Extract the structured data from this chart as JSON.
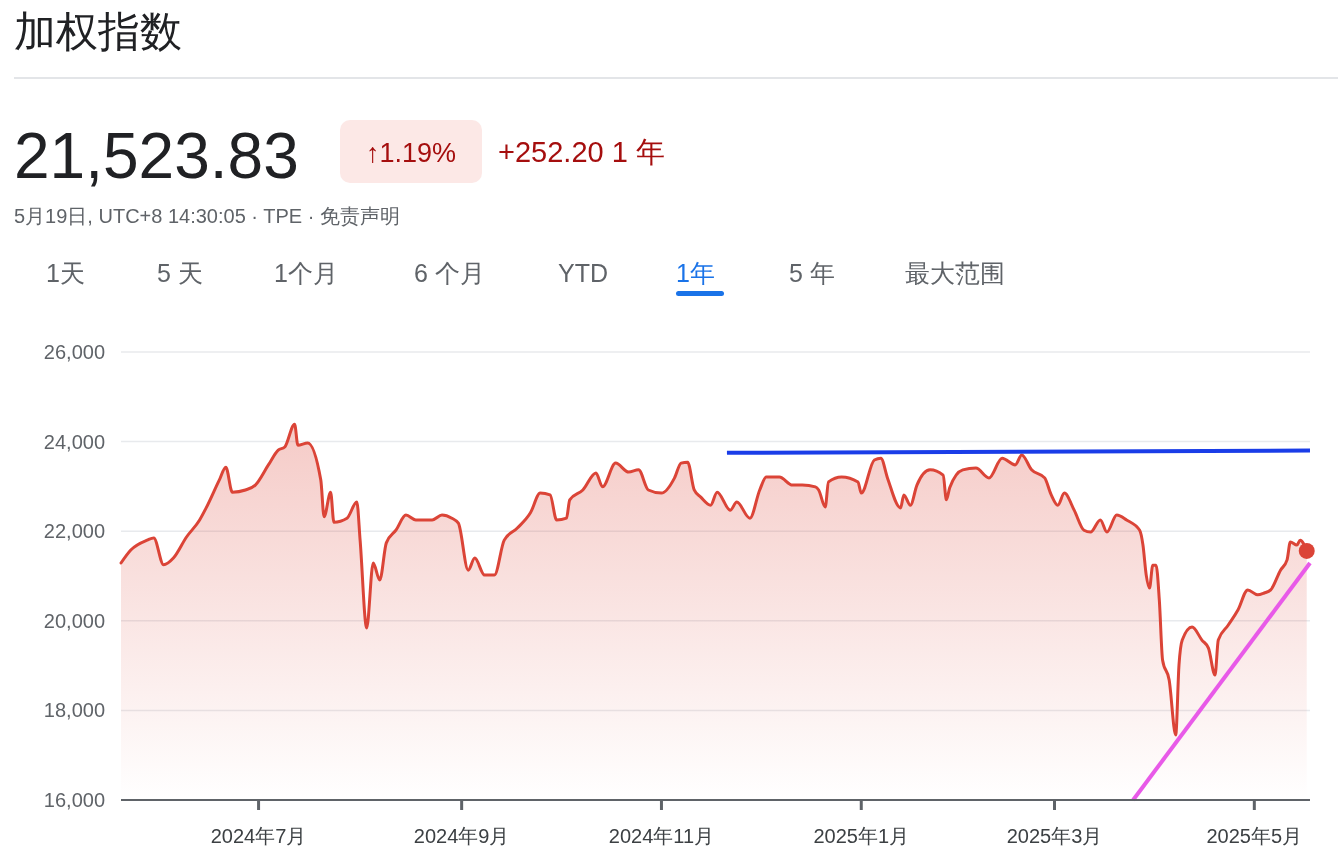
{
  "chart_data": {
    "type": "area",
    "title": "加权指数",
    "annotations": [
      "21,523.83",
      "↑1.19%",
      "+252.20 1 年",
      "5月19日, UTC+8 14:30:05 · TPE · 免责声明",
      "1天",
      "5 天",
      "1个月",
      "6 个月",
      "YTD",
      "1年",
      "5 年",
      "最大范围"
    ],
    "x": [
      "2024-05-20",
      "2024-05-23",
      "2024-05-28",
      "2024-05-30",
      "2024-06-02",
      "2024-06-05",
      "2024-06-09",
      "2024-06-13",
      "2024-06-15",
      "2024-06-19",
      "2024-06-21",
      "2024-06-23",
      "2024-06-27",
      "2024-06-30",
      "2024-07-04",
      "2024-07-07",
      "2024-07-09",
      "2024-07-12",
      "2024-07-13",
      "2024-07-16",
      "2024-07-20",
      "2024-07-21",
      "2024-07-23",
      "2024-07-24",
      "2024-07-28",
      "2024-07-31",
      "2024-08-01",
      "2024-08-03",
      "2024-08-05",
      "2024-08-07",
      "2024-08-09",
      "2024-08-12",
      "2024-08-15",
      "2024-08-18",
      "2024-08-23",
      "2024-08-26",
      "2024-08-29",
      "2024-08-31",
      "2024-09-03",
      "2024-09-05",
      "2024-09-08",
      "2024-09-11",
      "2024-09-14",
      "2024-09-18",
      "2024-09-22",
      "2024-09-25",
      "2024-09-28",
      "2024-09-30",
      "2024-10-03",
      "2024-10-04",
      "2024-10-08",
      "2024-10-12",
      "2024-10-14",
      "2024-10-18",
      "2024-10-22",
      "2024-10-25",
      "2024-10-28",
      "2024-11-01",
      "2024-11-05",
      "2024-11-07",
      "2024-11-09",
      "2024-11-11",
      "2024-11-13",
      "2024-11-16",
      "2024-11-18",
      "2024-11-22",
      "2024-11-24",
      "2024-11-28",
      "2024-12-01",
      "2024-12-03",
      "2024-12-07",
      "2024-12-11",
      "2024-12-14",
      "2024-12-18",
      "2024-12-19",
      "2024-12-21",
      "2024-12-22",
      "2024-12-26",
      "2024-12-31",
      "2025-01-01",
      "2025-01-05",
      "2025-01-07",
      "2025-01-09",
      "2025-01-13",
      "2025-01-14",
      "2025-01-16",
      "2025-01-18",
      "2025-01-22",
      "2025-01-26",
      "2025-01-27",
      "2025-01-28",
      "2025-02-01",
      "2025-02-05",
      "2025-02-09",
      "2025-02-13",
      "2025-02-17",
      "2025-02-19",
      "2025-02-22",
      "2025-02-26",
      "2025-02-28",
      "2025-03-02",
      "2025-03-04",
      "2025-03-07",
      "2025-03-10",
      "2025-03-12",
      "2025-03-15",
      "2025-03-17",
      "2025-03-20",
      "2025-03-23",
      "2025-03-27",
      "2025-03-28",
      "2025-03-29",
      "2025-03-30",
      "2025-03-31",
      "2025-04-01",
      "2025-04-02",
      "2025-04-03",
      "2025-04-05",
      "2025-04-07",
      "2025-04-08",
      "2025-04-09",
      "2025-04-12",
      "2025-04-15",
      "2025-04-17",
      "2025-04-19",
      "2025-04-20",
      "2025-04-23",
      "2025-04-26",
      "2025-04-29",
      "2025-05-02",
      "2025-05-04",
      "2025-05-06",
      "2025-05-09",
      "2025-05-11",
      "2025-05-12",
      "2025-05-14",
      "2025-05-15",
      "2025-05-17"
    ],
    "series": [
      {
        "color": "#db4437",
        "values": [
          21290,
          21580,
          21800,
          21850,
          21250,
          21400,
          21870,
          22250,
          22520,
          23140,
          23430,
          22870,
          22920,
          23030,
          23480,
          23810,
          23880,
          24390,
          23920,
          23970,
          23140,
          22320,
          22870,
          22200,
          22290,
          22650,
          21800,
          19840,
          21290,
          20910,
          21740,
          22030,
          22360,
          22250,
          22250,
          22360,
          22290,
          22180,
          21130,
          21400,
          21020,
          21020,
          21800,
          22070,
          22410,
          22850,
          22810,
          22250,
          22290,
          22700,
          22920,
          23300,
          22990,
          23520,
          23320,
          23370,
          22920,
          22850,
          23190,
          23520,
          23540,
          22920,
          22760,
          22580,
          22870,
          22470,
          22650,
          22290,
          22920,
          23210,
          23210,
          23030,
          23030,
          22990,
          22920,
          22540,
          23100,
          23210,
          23100,
          22850,
          23590,
          23630,
          23190,
          22520,
          22810,
          22580,
          23030,
          23370,
          23250,
          22700,
          22970,
          23370,
          23410,
          23190,
          23630,
          23480,
          23700,
          23370,
          23190,
          22810,
          22580,
          22850,
          22470,
          22020,
          21980,
          22250,
          21980,
          22360,
          22250,
          22020,
          21690,
          21020,
          20730,
          21240,
          21240,
          20460,
          19120,
          18680,
          17450,
          19010,
          19570,
          19860,
          19570,
          19390,
          18790,
          19570,
          19900,
          20240,
          20690,
          20580,
          20620,
          20690,
          21130,
          21360,
          21760,
          21690,
          21800,
          21560
        ]
      },
      {
        "type": "scatter",
        "color": "#db4437",
        "x": [
          "2025-05-17"
        ],
        "values": [
          21560
        ]
      },
      {
        "type": "line",
        "color": "#1a3de8",
        "x": [
          "2024-11-21",
          "2025-05-18"
        ],
        "values": [
          23750,
          23800
        ]
      },
      {
        "type": "line",
        "color": "#e85ae8",
        "x": [
          "2025-03-25",
          "2025-05-18"
        ],
        "values": [
          16000,
          21290
        ]
      }
    ],
    "xlim": [
      "2024-05-20",
      "2025-05-18"
    ],
    "xticks": [
      {
        "value": "2024-07-01",
        "label": "2024年7月"
      },
      {
        "value": "2024-09-01",
        "label": "2024年9月"
      },
      {
        "value": "2024-11-01",
        "label": "2024年11月"
      },
      {
        "value": "2025-01-01",
        "label": "2025年1月"
      },
      {
        "value": "2025-03-01",
        "label": "2025年3月"
      },
      {
        "value": "2025-05-01",
        "label": "2025年5月"
      }
    ],
    "ylim": [
      16000,
      26000
    ],
    "yticks": [
      {
        "value": 16000,
        "label": "16,000"
      },
      {
        "value": 18000,
        "label": "18,000"
      },
      {
        "value": 20000,
        "label": "20,000"
      },
      {
        "value": 22000,
        "label": "22,000"
      },
      {
        "value": 24000,
        "label": "24,000"
      },
      {
        "value": 26000,
        "label": "26,000"
      }
    ],
    "grid": "y"
  }
}
